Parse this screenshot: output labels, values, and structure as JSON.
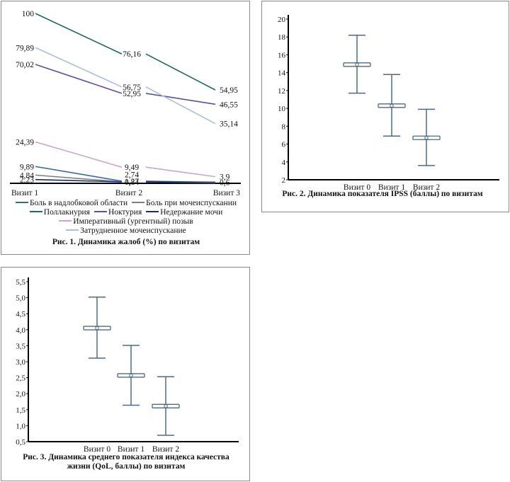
{
  "chart_data": [
    {
      "type": "line",
      "title": "Рис. 1. Динамика жалоб (%) по визитам",
      "xlabel": "",
      "ylabel": "",
      "categories": [
        "Визит 1",
        "Визит 2",
        "Визит 3"
      ],
      "ylim": [
        0,
        100
      ],
      "grid": false,
      "legend_position": "bottom",
      "series": [
        {
          "name": "Боль в надлобковой области",
          "color": "#2f6aa3",
          "values": [
            9.89,
            1.27,
            0.6
          ],
          "labels": [
            "9,89",
            "1,27",
            ""
          ]
        },
        {
          "name": "Боль при мочеиспускании",
          "color": "#7f7f7f",
          "values": [
            4.84,
            0.84,
            0.3
          ],
          "labels": [
            "4,84",
            "",
            ""
          ]
        },
        {
          "name": "Поллакиурия",
          "color": "#1e6e4e",
          "values": [
            100,
            76.16,
            54.95
          ],
          "labels": [
            "100",
            "76,16",
            "54,95"
          ]
        },
        {
          "name": "Ноктурия",
          "color": "#5b4ea8",
          "values": [
            70.02,
            52.95,
            46.55
          ],
          "labels": [
            "70,02",
            "52,95",
            "46,55"
          ]
        },
        {
          "name": "Недержание мочи",
          "color": "#1a2f6b",
          "values": [
            2.23,
            0.84,
            0.6
          ],
          "labels": [
            "2,23",
            "0,84",
            "0,6"
          ]
        },
        {
          "name": "Императивный (ургентный) позыв",
          "color": "#c9a5cf",
          "values": [
            24.39,
            9.49,
            3.9
          ],
          "labels": [
            "24,39",
            "9,49",
            "3,9"
          ]
        },
        {
          "name": "Затрудненное мочеиспускание",
          "color": "#a8c0dc",
          "values": [
            79.89,
            56.75,
            35.14
          ],
          "labels": [
            "79,89",
            "56,75",
            "35,14"
          ]
        }
      ],
      "extra_labels": [
        {
          "category": "Визит 2",
          "text": "2,74"
        }
      ]
    },
    {
      "type": "errorbar",
      "title": "Рис. 2. Динамика показателя IPSS (баллы) по визитам",
      "xlabel": "",
      "ylabel": "",
      "categories": [
        "Визит 0",
        "Визит 1",
        "Визит 2"
      ],
      "ylim": [
        2,
        20
      ],
      "yticks": [
        2,
        4,
        6,
        8,
        10,
        12,
        14,
        16,
        18,
        20
      ],
      "ytick_labels": [
        "2",
        "4",
        "6",
        "8",
        "10",
        "12",
        "14",
        "16",
        "18",
        "20"
      ],
      "color": "#4a6a8e",
      "means": [
        14.9,
        10.3,
        6.7
      ],
      "lower": [
        11.7,
        6.9,
        3.6
      ],
      "upper": [
        18.2,
        13.8,
        9.9
      ],
      "grid": false
    },
    {
      "type": "errorbar",
      "title": "Рис. 3. Динамика среднего показателя индекса качества жизни (QoL, баллы) по визитам",
      "title_lines": [
        "Рис. 3. Динамика среднего показателя индекса качества",
        "жизни (QoL, баллы) по визитам"
      ],
      "xlabel": "",
      "ylabel": "",
      "categories": [
        "Визит 0",
        "Визит 1",
        "Визит 2"
      ],
      "ylim": [
        0.5,
        5.5
      ],
      "yticks": [
        0.5,
        1.0,
        1.5,
        2.0,
        2.5,
        3.0,
        3.5,
        4.0,
        4.5,
        5.0,
        5.5
      ],
      "ytick_labels": [
        "0,5",
        "1,0",
        "1,5",
        "2,0",
        "2,5",
        "3,0",
        "3,5",
        "4,0",
        "4,5",
        "5,0",
        "5,5"
      ],
      "color": "#4a6a8e",
      "means": [
        4.05,
        2.57,
        1.61
      ],
      "lower": [
        3.11,
        1.64,
        0.7
      ],
      "upper": [
        5.02,
        3.51,
        2.53
      ],
      "grid": false
    }
  ],
  "fig1": {
    "caption": "Рис. 1. Динамика жалоб (%) по визитам",
    "legend_rows": [
      [
        0,
        1
      ],
      [
        2,
        3,
        4
      ],
      [
        5
      ],
      [
        6
      ]
    ]
  },
  "fig2": {
    "caption": "Рис. 2. Динамика показателя IPSS (баллы) по визитам"
  },
  "fig3": {
    "caption_line1": "Рис. 3. Динамика среднего показателя индекса качества",
    "caption_line2": "жизни (QoL, баллы) по визитам"
  }
}
